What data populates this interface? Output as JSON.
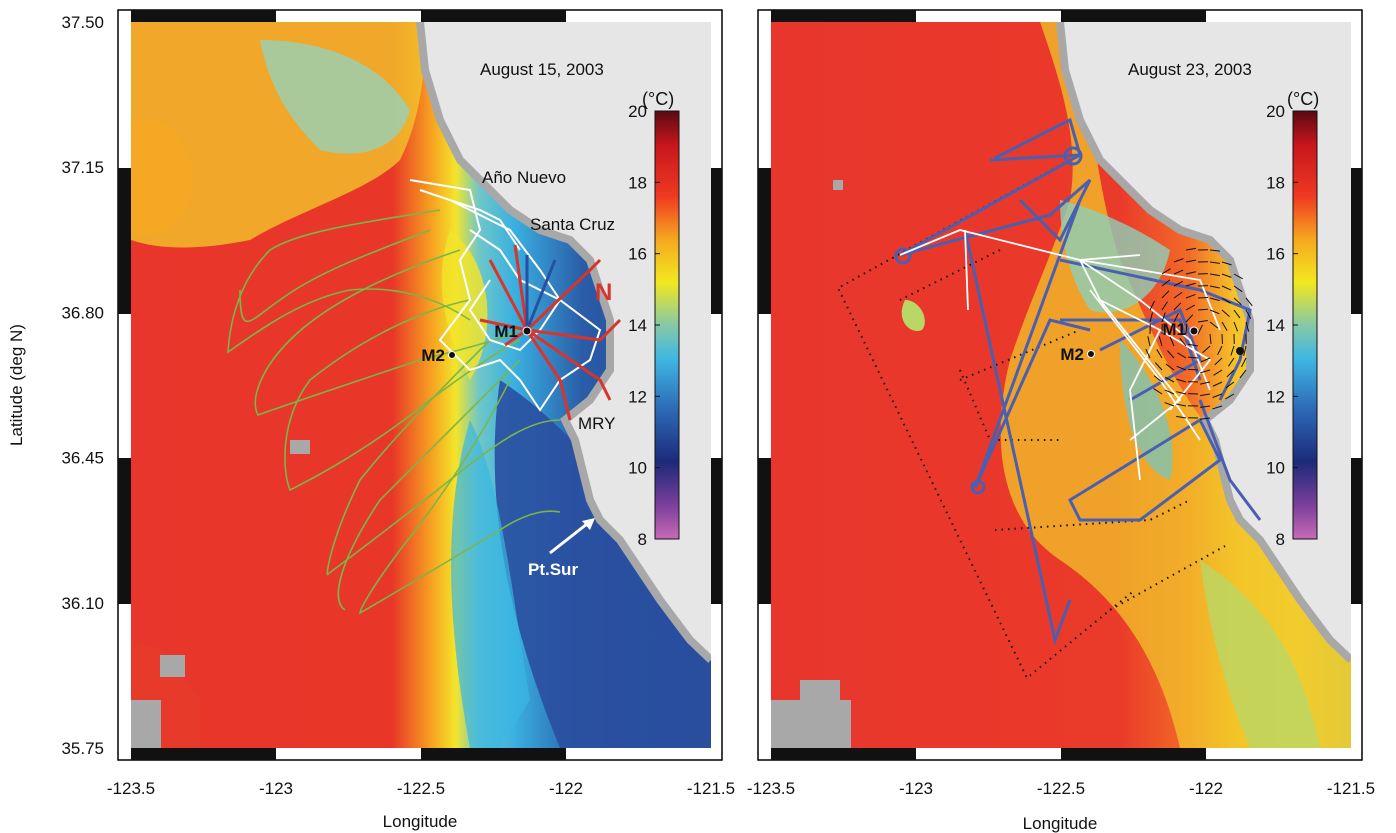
{
  "figure": {
    "y_axis_label": "Latitude (deg N)",
    "y_ticks": [
      "37.50",
      "37.15",
      "36.80",
      "36.45",
      "36.10",
      "35.75"
    ],
    "panels": [
      {
        "id": "left",
        "date": "August 15, 2003",
        "x_axis_label": "Longitude",
        "x_ticks": [
          "-123.5",
          "-123",
          "-122.5",
          "-122",
          "-121.5"
        ],
        "colorbar": {
          "unit": "(°C)",
          "ticks": [
            "20",
            "18",
            "16",
            "14",
            "12",
            "10",
            "8"
          ],
          "range": [
            8,
            20
          ]
        },
        "place_labels": {
          "ano_nuevo": "Año Nuevo",
          "santa_cruz": "Santa Cruz",
          "mry": "MRY",
          "pt_sur": "Pt.Sur",
          "north_mark": "N"
        },
        "moorings": {
          "m1": "M1",
          "m2": "M2"
        }
      },
      {
        "id": "right",
        "date": "August 23, 2003",
        "x_axis_label": "Longitude",
        "x_ticks": [
          "-123.5",
          "-123",
          "-122.5",
          "-122",
          "-121.5"
        ],
        "colorbar": {
          "unit": "(°C)",
          "ticks": [
            "20",
            "18",
            "16",
            "14",
            "12",
            "10",
            "8"
          ],
          "range": [
            8,
            20
          ]
        },
        "moorings": {
          "m1": "M1",
          "m2": "M2"
        }
      }
    ],
    "colors": {
      "sst_warm": "#e8322a",
      "sst_cold": "#2a4a9a",
      "land": "#e6e6e6",
      "coast": "#a8a8a8",
      "drifter_tracks": "#7ab648",
      "glider_tracks": "#ffffff",
      "auv_tracks": "#d9342b",
      "glider_right": "#4a5fb0"
    }
  }
}
